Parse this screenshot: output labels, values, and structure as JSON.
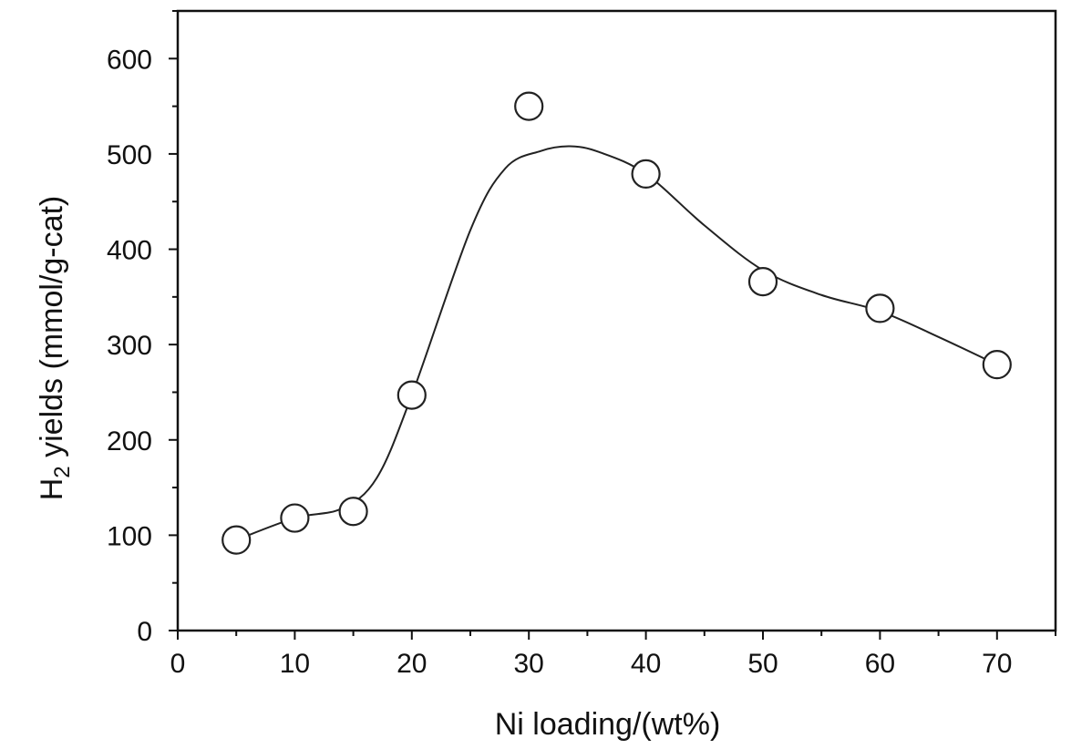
{
  "chart_data": {
    "type": "scatter",
    "title": "",
    "xlabel": "Ni loading/(wt%)",
    "ylabel": {
      "main": "H",
      "subscript": "2",
      "rest": " yields (mmol/g-cat)"
    },
    "xlim": [
      0,
      75
    ],
    "ylim": [
      0,
      650
    ],
    "x_ticks": [
      0,
      10,
      20,
      30,
      40,
      50,
      60,
      70
    ],
    "y_ticks": [
      0,
      100,
      200,
      300,
      400,
      500,
      600
    ],
    "x_tick_labels": [
      "0",
      "10",
      "20",
      "30",
      "40",
      "50",
      "60",
      "70"
    ],
    "y_tick_labels": [
      "0",
      "100",
      "200",
      "300",
      "400",
      "500",
      "600"
    ],
    "grid": false,
    "legend": "none",
    "series": [
      {
        "marker": "open-circle",
        "points": [
          {
            "x": 5,
            "y": 95
          },
          {
            "x": 10,
            "y": 118
          },
          {
            "x": 15,
            "y": 125
          },
          {
            "x": 20,
            "y": 247
          },
          {
            "x": 30,
            "y": 550
          },
          {
            "x": 40,
            "y": 479
          },
          {
            "x": 50,
            "y": 366
          },
          {
            "x": 60,
            "y": 338
          },
          {
            "x": 70,
            "y": 279
          }
        ]
      }
    ],
    "fit_curve": [
      {
        "x": 5,
        "y": 95
      },
      {
        "x": 10,
        "y": 118
      },
      {
        "x": 14,
        "y": 128
      },
      {
        "x": 17,
        "y": 160
      },
      {
        "x": 20,
        "y": 247
      },
      {
        "x": 25,
        "y": 420
      },
      {
        "x": 28,
        "y": 485
      },
      {
        "x": 31,
        "y": 503
      },
      {
        "x": 33.5,
        "y": 508
      },
      {
        "x": 36,
        "y": 502
      },
      {
        "x": 40,
        "y": 479
      },
      {
        "x": 45,
        "y": 425
      },
      {
        "x": 50,
        "y": 378
      },
      {
        "x": 55,
        "y": 352
      },
      {
        "x": 60,
        "y": 335
      },
      {
        "x": 65,
        "y": 308
      },
      {
        "x": 70,
        "y": 279
      }
    ]
  }
}
